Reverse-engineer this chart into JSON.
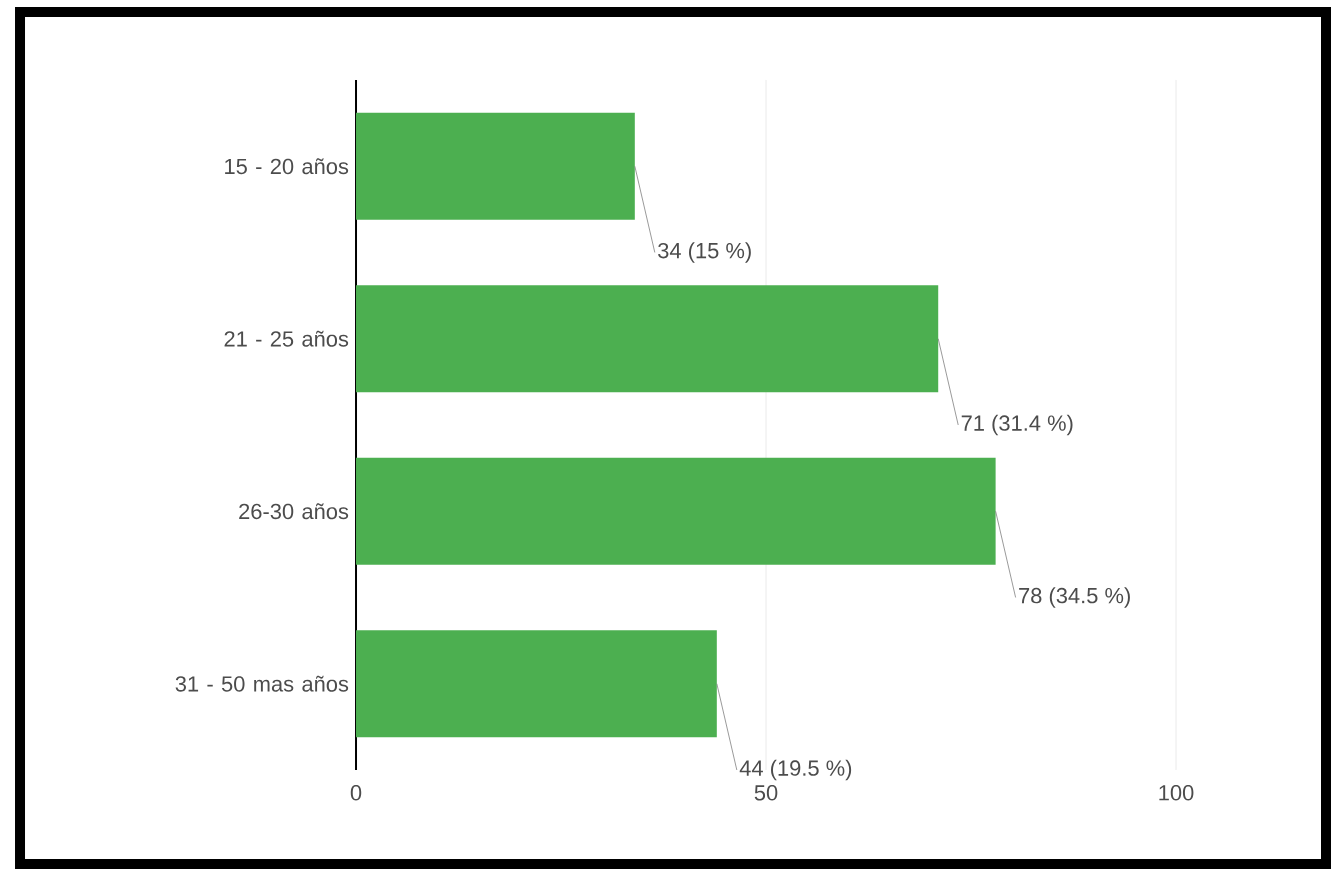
{
  "chart_data": {
    "type": "bar",
    "orientation": "horizontal",
    "categories": [
      "15 - 20 años",
      "21 - 25 años",
      "26-30 años",
      "31 - 50 mas años"
    ],
    "values": [
      34,
      71,
      78,
      44
    ],
    "value_labels": [
      "34 (15 %)",
      "71 (31.4 %)",
      "78 (34.5 %)",
      "44 (19.5 %)"
    ],
    "color": "#4caf50",
    "xlim": [
      0,
      100
    ],
    "xticks": [
      0,
      50,
      100
    ],
    "grid": "x"
  }
}
